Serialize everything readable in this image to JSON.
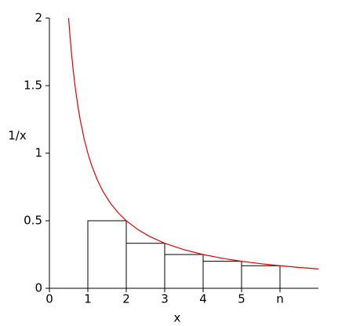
{
  "chart_data": {
    "type": "line",
    "xlabel": "x",
    "ylabel": "1/x",
    "xlim": [
      0,
      7
    ],
    "ylim": [
      0,
      2
    ],
    "xticks": [
      0,
      1,
      2,
      3,
      4,
      5,
      {
        "value": 6,
        "label": "n"
      }
    ],
    "yticks": [
      0,
      0.5,
      1,
      1.5,
      2
    ],
    "series": [
      {
        "color": "#e00000",
        "x": [
          0.5,
          0.52,
          0.55,
          0.58,
          0.62,
          0.66,
          0.7,
          0.75,
          0.8,
          0.9,
          1,
          1.1,
          1.25,
          1.4,
          1.6,
          1.8,
          2,
          2.3,
          2.6,
          3,
          3.5,
          4,
          4.5,
          5,
          5.5,
          6,
          6.5,
          7
        ],
        "values": [
          2,
          1.923,
          1.818,
          1.724,
          1.613,
          1.515,
          1.429,
          1.333,
          1.25,
          1.111,
          1,
          0.909,
          0.8,
          0.714,
          0.625,
          0.556,
          0.5,
          0.435,
          0.385,
          0.333,
          0.286,
          0.25,
          0.222,
          0.2,
          0.182,
          0.167,
          0.154,
          0.143
        ]
      }
    ],
    "bars": {
      "color": "#000000",
      "bins": [
        1,
        2,
        3,
        4,
        5,
        6
      ],
      "values": [
        0.5,
        0.333,
        0.25,
        0.2,
        0.167
      ]
    }
  }
}
